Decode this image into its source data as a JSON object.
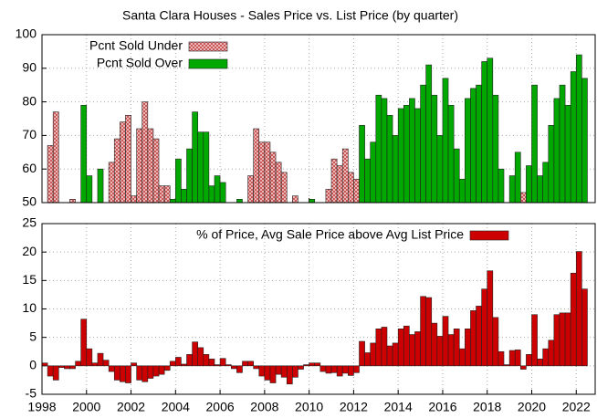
{
  "chart_data": [
    {
      "type": "bar",
      "title": "Santa Clara Houses - Sales Price vs. List Price (by quarter)",
      "xlim": [
        1998,
        2022.85
      ],
      "xticks": [
        1998,
        2000,
        2002,
        2004,
        2006,
        2008,
        2010,
        2012,
        2014,
        2016,
        2018,
        2020,
        2022
      ],
      "ylim": [
        50,
        100
      ],
      "yticks": [
        50,
        60,
        70,
        80,
        90,
        100
      ],
      "grid": true,
      "legend": "top-left",
      "series": [
        {
          "name": "Pcnt Sold Under",
          "color": "#f2b8b8",
          "hatch": true,
          "x": [
            1998.25,
            1998.5,
            1999.25,
            2001.0,
            2001.25,
            2001.5,
            2001.75,
            2002.0,
            2002.25,
            2002.5,
            2002.75,
            2003.0,
            2003.25,
            2003.5,
            2007.25,
            2007.5,
            2007.75,
            2008.0,
            2008.25,
            2008.5,
            2008.75,
            2009.25,
            2010.75,
            2011.0,
            2011.25,
            2011.5,
            2011.75,
            2012.0,
            2019.5
          ],
          "values": [
            67,
            77,
            51,
            62,
            69,
            74,
            76,
            52,
            72,
            80,
            72,
            69,
            55,
            55,
            58,
            72,
            68,
            68,
            65,
            62,
            59,
            52,
            54,
            63,
            61,
            66,
            59,
            57,
            53
          ]
        },
        {
          "name": "Pcnt Sold Over",
          "color": "#00a800",
          "x": [
            1999.75,
            2000.0,
            2000.5,
            2003.75,
            2004.0,
            2004.25,
            2004.5,
            2004.75,
            2005.0,
            2005.25,
            2005.5,
            2005.75,
            2006.0,
            2006.75,
            2010.0,
            2012.25,
            2012.5,
            2012.75,
            2013.0,
            2013.25,
            2013.5,
            2013.75,
            2014.0,
            2014.25,
            2014.5,
            2014.75,
            2015.0,
            2015.25,
            2015.5,
            2015.75,
            2016.0,
            2016.25,
            2016.5,
            2016.75,
            2017.0,
            2017.25,
            2017.5,
            2017.75,
            2018.0,
            2018.25,
            2018.5,
            2019.0,
            2019.25,
            2019.75,
            2020.0,
            2020.25,
            2020.5,
            2020.75,
            2021.0,
            2021.25,
            2021.5,
            2021.75,
            2022.0,
            2022.25
          ],
          "values": [
            79,
            58,
            60,
            51,
            63,
            54,
            66,
            77,
            71,
            71,
            55,
            58,
            56,
            51,
            51,
            73,
            63,
            68,
            82,
            81,
            76,
            70,
            78,
            79,
            81,
            78,
            85,
            91,
            82,
            70,
            87,
            79,
            66,
            57,
            81,
            84,
            85,
            92,
            93,
            82,
            60,
            58,
            65,
            61,
            85,
            58,
            62,
            73,
            81,
            85,
            79,
            89,
            94,
            87
          ]
        }
      ]
    },
    {
      "type": "bar",
      "xlim": [
        1998,
        2022.85
      ],
      "xticks": [
        1998,
        2000,
        2002,
        2004,
        2006,
        2008,
        2010,
        2012,
        2014,
        2016,
        2018,
        2020,
        2022
      ],
      "ylim": [
        -5,
        25
      ],
      "yticks": [
        -5,
        0,
        5,
        10,
        15,
        20,
        25
      ],
      "grid": true,
      "legend": "top-right",
      "series": [
        {
          "name": "% of Price, Avg Sale Price above Avg List Price",
          "color": "#cc0000",
          "x": [
            1998.0,
            1998.25,
            1998.5,
            1998.75,
            1999.0,
            1999.25,
            1999.5,
            1999.75,
            2000.0,
            2000.25,
            2000.5,
            2000.75,
            2001.0,
            2001.25,
            2001.5,
            2001.75,
            2002.0,
            2002.25,
            2002.5,
            2002.75,
            2003.0,
            2003.25,
            2003.5,
            2003.75,
            2004.0,
            2004.25,
            2004.5,
            2004.75,
            2005.0,
            2005.25,
            2005.5,
            2005.75,
            2006.0,
            2006.25,
            2006.5,
            2006.75,
            2007.0,
            2007.25,
            2007.5,
            2007.75,
            2008.0,
            2008.25,
            2008.5,
            2008.75,
            2009.0,
            2009.25,
            2009.5,
            2009.75,
            2010.0,
            2010.25,
            2010.5,
            2010.75,
            2011.0,
            2011.25,
            2011.5,
            2011.75,
            2012.0,
            2012.25,
            2012.5,
            2012.75,
            2013.0,
            2013.25,
            2013.5,
            2013.75,
            2014.0,
            2014.25,
            2014.5,
            2014.75,
            2015.0,
            2015.25,
            2015.5,
            2015.75,
            2016.0,
            2016.25,
            2016.5,
            2016.75,
            2017.0,
            2017.25,
            2017.5,
            2017.75,
            2018.0,
            2018.25,
            2018.5,
            2018.75,
            2019.0,
            2019.25,
            2019.5,
            2019.75,
            2020.0,
            2020.25,
            2020.5,
            2020.75,
            2021.0,
            2021.25,
            2021.5,
            2021.75,
            2022.0,
            2022.25
          ],
          "values": [
            0.5,
            -1.8,
            -2.5,
            -0.3,
            -0.5,
            -0.5,
            0.8,
            8.2,
            3,
            0.5,
            2.2,
            1,
            -1,
            -2.5,
            -2.8,
            -3,
            0.5,
            -2.5,
            -2.8,
            -2.2,
            -1.8,
            -1.5,
            -0.8,
            0.8,
            1.5,
            0.3,
            2,
            4.2,
            3.2,
            2,
            1.2,
            0.2,
            1.3,
            0.2,
            -0.5,
            -1.2,
            0.8,
            0.8,
            -0.5,
            -1.8,
            -2.5,
            -3,
            -1.5,
            -2,
            -3.2,
            -2,
            -0.6,
            0.2,
            0.5,
            0.5,
            -1,
            -1.3,
            -1.2,
            -1.8,
            -1.3,
            -1.7,
            -1.2,
            4.3,
            2.3,
            4,
            6.5,
            6.8,
            3.5,
            4,
            6.5,
            7,
            5.5,
            6,
            12.2,
            12,
            7.5,
            5.2,
            8.7,
            5.5,
            6.5,
            3,
            6.5,
            9.7,
            10.5,
            13.5,
            16.7,
            8.5,
            2.5,
            0.2,
            2.7,
            2.8,
            -0.6,
            2,
            9,
            1.2,
            3,
            4.5,
            9,
            9.3,
            9.3,
            16.3,
            20.1,
            13.5
          ]
        }
      ]
    }
  ]
}
